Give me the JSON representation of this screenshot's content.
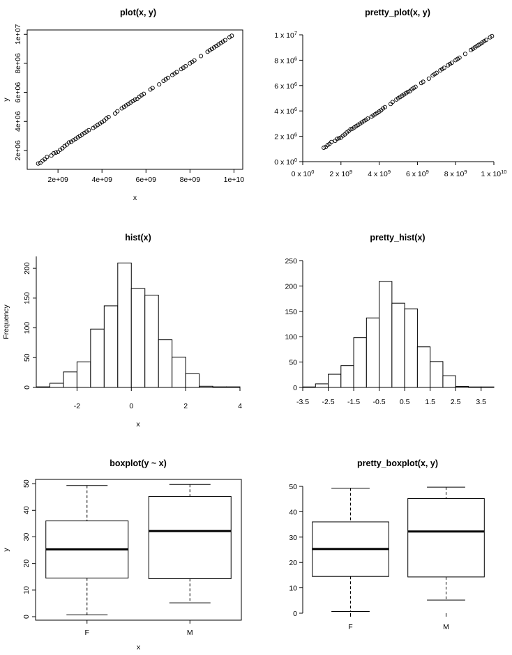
{
  "chart_data": [
    {
      "type": "scatter",
      "title": "plot(x, y)",
      "xlabel": "x",
      "ylabel": "y",
      "xlim": [
        600000000,
        10400000000
      ],
      "ylim": [
        700000,
        10300000
      ],
      "x_ticks": [
        2000000000,
        4000000000,
        6000000000,
        8000000000,
        10000000000
      ],
      "x_tick_labels": [
        "2e+09",
        "4e+09",
        "6e+09",
        "8e+09",
        "1e+10"
      ],
      "y_ticks": [
        2000000,
        4000000,
        6000000,
        8000000,
        10000000
      ],
      "y_tick_labels": [
        "2e+06",
        "4e+06",
        "6e+06",
        "8e+06",
        "1e+07"
      ],
      "box": true,
      "grid": false,
      "points": {
        "x": [
          1100000000,
          1200000000,
          1300000000,
          1400000000,
          1500000000,
          1700000000,
          1800000000,
          1900000000,
          2000000000,
          2100000000,
          2200000000,
          2300000000,
          2400000000,
          2500000000,
          2600000000,
          2700000000,
          2800000000,
          2900000000,
          3000000000,
          3100000000,
          3200000000,
          3300000000,
          3400000000,
          3600000000,
          3700000000,
          3800000000,
          3900000000,
          4000000000,
          4100000000,
          4200000000,
          4300000000,
          4600000000,
          4700000000,
          4900000000,
          5000000000,
          5100000000,
          5200000000,
          5300000000,
          5400000000,
          5500000000,
          5600000000,
          5700000000,
          5800000000,
          5900000000,
          6200000000,
          6300000000,
          6600000000,
          6800000000,
          6900000000,
          7000000000,
          7200000000,
          7300000000,
          7400000000,
          7600000000,
          7700000000,
          7800000000,
          8000000000,
          8100000000,
          8200000000,
          8500000000,
          8800000000,
          8900000000,
          9000000000,
          9100000000,
          9200000000,
          9300000000,
          9400000000,
          9500000000,
          9600000000,
          9800000000,
          9900000000
        ],
        "y": [
          1100000,
          1150000,
          1300000,
          1400000,
          1550000,
          1650000,
          1800000,
          1850000,
          1900000,
          2050000,
          2150000,
          2300000,
          2400000,
          2550000,
          2600000,
          2700000,
          2800000,
          2900000,
          3000000,
          3100000,
          3200000,
          3300000,
          3400000,
          3550000,
          3650000,
          3750000,
          3850000,
          3950000,
          4050000,
          4200000,
          4300000,
          4550000,
          4700000,
          4900000,
          5000000,
          5100000,
          5200000,
          5300000,
          5400000,
          5500000,
          5550000,
          5700000,
          5800000,
          5900000,
          6200000,
          6300000,
          6550000,
          6800000,
          6900000,
          7000000,
          7200000,
          7300000,
          7400000,
          7600000,
          7700000,
          7800000,
          8000000,
          8100000,
          8200000,
          8500000,
          8800000,
          8900000,
          9000000,
          9100000,
          9200000,
          9300000,
          9400000,
          9500000,
          9600000,
          9800000,
          9900000
        ]
      }
    },
    {
      "type": "scatter",
      "title": "pretty_plot(x, y)",
      "xlabel": "",
      "ylabel": "",
      "xlim": [
        0,
        10000000000
      ],
      "ylim": [
        0,
        10000000
      ],
      "x_ticks": [
        0,
        2000000000,
        4000000000,
        6000000000,
        8000000000,
        10000000000
      ],
      "x_tick_labels": [
        [
          "0 x 10",
          "0"
        ],
        [
          "2 x 10",
          "9"
        ],
        [
          "4 x 10",
          "9"
        ],
        [
          "6 x 10",
          "9"
        ],
        [
          "8 x 10",
          "9"
        ],
        [
          "1 x 10",
          "10"
        ]
      ],
      "y_ticks": [
        0,
        2000000,
        4000000,
        6000000,
        8000000,
        10000000
      ],
      "y_tick_labels": [
        [
          "0 x 10",
          "0"
        ],
        [
          "2 x 10",
          "6"
        ],
        [
          "4 x 10",
          "6"
        ],
        [
          "6 x 10",
          "6"
        ],
        [
          "8 x 10",
          "6"
        ],
        [
          "1 x 10",
          "7"
        ]
      ],
      "box": false,
      "grid": false,
      "points_same_as_previous": true
    },
    {
      "type": "bar",
      "title": "hist(x)",
      "xlabel": "x",
      "ylabel": "Frequency",
      "breaks": [
        -3.5,
        -3,
        -2.5,
        -2,
        -1.5,
        -1,
        -0.5,
        0,
        0.5,
        1,
        1.5,
        2,
        2.5,
        3,
        3.5,
        4
      ],
      "counts": [
        1,
        7,
        26,
        43,
        98,
        137,
        209,
        166,
        155,
        80,
        51,
        23,
        2,
        1,
        1
      ],
      "xlim": [
        -3.5,
        4
      ],
      "ylim": [
        0,
        220
      ],
      "x_ticks": [
        -2,
        0,
        2,
        4
      ],
      "x_tick_labels": [
        "-2",
        "0",
        "2",
        "4"
      ],
      "y_ticks": [
        0,
        50,
        100,
        150,
        200
      ],
      "y_tick_labels": [
        "0",
        "50",
        "100",
        "150",
        "200"
      ],
      "box": false,
      "grid": false
    },
    {
      "type": "bar",
      "title": "pretty_hist(x)",
      "xlabel": "",
      "ylabel": "",
      "breaks": [
        -3.5,
        -3,
        -2.5,
        -2,
        -1.5,
        -1,
        -0.5,
        0,
        0.5,
        1,
        1.5,
        2,
        2.5,
        3,
        3.5,
        4
      ],
      "counts": [
        1,
        7,
        26,
        43,
        98,
        137,
        209,
        166,
        155,
        80,
        51,
        23,
        2,
        1,
        1
      ],
      "xlim": [
        -3.5,
        4
      ],
      "ylim": [
        0,
        250
      ],
      "x_ticks": [
        -3.5,
        -2.5,
        -1.5,
        -0.5,
        0.5,
        1.5,
        2.5,
        3.5
      ],
      "x_tick_labels": [
        "-3.5",
        "-2.5",
        "-1.5",
        "-0.5",
        "0.5",
        "1.5",
        "2.5",
        "3.5"
      ],
      "y_ticks": [
        0,
        50,
        100,
        150,
        200,
        250
      ],
      "y_tick_labels": [
        "0",
        "50",
        "100",
        "150",
        "200",
        "250"
      ],
      "box": false,
      "grid": false
    },
    {
      "type": "box",
      "title": "boxplot(y ~ x)",
      "xlabel": "x",
      "ylabel": "y",
      "categories": [
        "F",
        "M"
      ],
      "stats": [
        {
          "min": 0.7,
          "q1": 14.5,
          "median": 25.3,
          "q3": 36.0,
          "max": 49.3
        },
        {
          "min": 5.2,
          "q1": 14.3,
          "median": 32.2,
          "q3": 45.2,
          "max": 49.7
        }
      ],
      "ylim": [
        -1.3,
        51.6
      ],
      "y_ticks": [
        0,
        10,
        20,
        30,
        40,
        50
      ],
      "y_tick_labels": [
        "0",
        "10",
        "20",
        "30",
        "40",
        "50"
      ],
      "box": true,
      "grid": false
    },
    {
      "type": "box",
      "title": "pretty_boxplot(x, y)",
      "xlabel": "",
      "ylabel": "",
      "categories": [
        "F",
        "M"
      ],
      "stats": [
        {
          "min": 0.7,
          "q1": 14.5,
          "median": 25.3,
          "q3": 36.0,
          "max": 49.3
        },
        {
          "min": 5.2,
          "q1": 14.3,
          "median": 32.2,
          "q3": 45.2,
          "max": 49.7
        }
      ],
      "ylim": [
        0,
        50
      ],
      "y_ticks": [
        0,
        10,
        20,
        30,
        40,
        50
      ],
      "y_tick_labels": [
        "0",
        "10",
        "20",
        "30",
        "40",
        "50"
      ],
      "box": false,
      "grid": false
    }
  ]
}
